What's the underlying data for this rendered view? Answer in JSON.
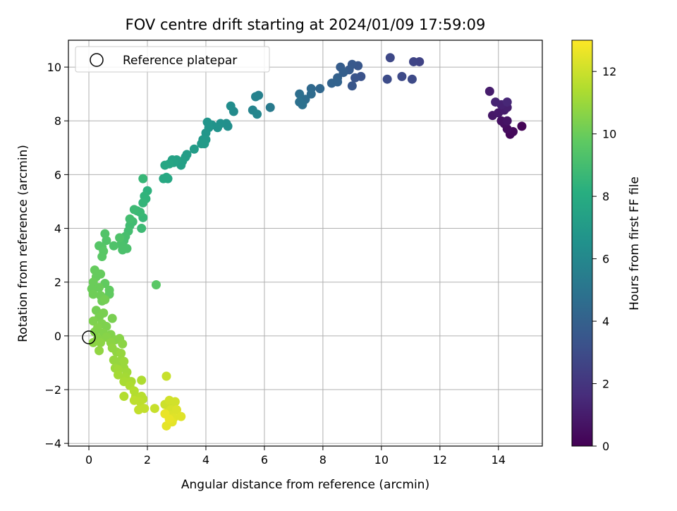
{
  "chart_data": {
    "type": "scatter",
    "title": "FOV centre drift starting at 2024/01/09 17:59:09",
    "xlabel": "Angular distance from reference (arcmin)",
    "ylabel": "Rotation from reference (arcmin)",
    "xlim": [
      -0.7,
      15.5
    ],
    "ylim": [
      -4.1,
      11.0
    ],
    "xticks": [
      0,
      2,
      4,
      6,
      8,
      10,
      12,
      14
    ],
    "yticks": [
      -4,
      -2,
      0,
      2,
      4,
      6,
      8,
      10
    ],
    "xtick_labels": [
      "0",
      "2",
      "4",
      "6",
      "8",
      "10",
      "12",
      "14"
    ],
    "ytick_labels": [
      "−4",
      "−2",
      "0",
      "2",
      "4",
      "6",
      "8",
      "10"
    ],
    "grid": true,
    "legend": {
      "position": "top-left",
      "label": "Reference platepar"
    },
    "reference_point": {
      "x": 0,
      "y": 0
    },
    "colorbar": {
      "label": "Hours from first FF file",
      "range": [
        0,
        13
      ],
      "ticks": [
        0,
        2,
        4,
        6,
        8,
        10,
        12
      ],
      "tick_labels": [
        "0",
        "2",
        "4",
        "6",
        "8",
        "10",
        "12"
      ],
      "colormap": "viridis"
    },
    "points": [
      {
        "x": 14.8,
        "y": 7.8,
        "c": 0.1
      },
      {
        "x": 14.4,
        "y": 7.5,
        "c": 0.2
      },
      {
        "x": 14.5,
        "y": 7.6,
        "c": 0.3
      },
      {
        "x": 14.3,
        "y": 7.7,
        "c": 0.4
      },
      {
        "x": 14.2,
        "y": 7.9,
        "c": 0.5
      },
      {
        "x": 14.1,
        "y": 8.0,
        "c": 0.6
      },
      {
        "x": 14.3,
        "y": 8.0,
        "c": 0.7
      },
      {
        "x": 13.8,
        "y": 8.2,
        "c": 0.8
      },
      {
        "x": 14.0,
        "y": 8.3,
        "c": 0.9
      },
      {
        "x": 14.2,
        "y": 8.4,
        "c": 1.0
      },
      {
        "x": 14.3,
        "y": 8.5,
        "c": 1.1
      },
      {
        "x": 14.1,
        "y": 8.6,
        "c": 1.2
      },
      {
        "x": 13.9,
        "y": 8.7,
        "c": 1.3
      },
      {
        "x": 14.3,
        "y": 8.7,
        "c": 1.4
      },
      {
        "x": 13.7,
        "y": 9.1,
        "c": 1.0
      },
      {
        "x": 11.3,
        "y": 10.2,
        "c": 2.6
      },
      {
        "x": 11.1,
        "y": 10.2,
        "c": 2.7
      },
      {
        "x": 10.3,
        "y": 10.35,
        "c": 2.8
      },
      {
        "x": 10.7,
        "y": 9.65,
        "c": 2.9
      },
      {
        "x": 11.05,
        "y": 9.55,
        "c": 2.9
      },
      {
        "x": 10.2,
        "y": 9.55,
        "c": 3.0
      },
      {
        "x": 9.3,
        "y": 9.65,
        "c": 3.3
      },
      {
        "x": 9.1,
        "y": 9.6,
        "c": 3.4
      },
      {
        "x": 9.0,
        "y": 9.3,
        "c": 3.5
      },
      {
        "x": 9.2,
        "y": 10.05,
        "c": 3.5
      },
      {
        "x": 9.0,
        "y": 10.1,
        "c": 3.6
      },
      {
        "x": 8.9,
        "y": 9.9,
        "c": 3.7
      },
      {
        "x": 8.6,
        "y": 10.0,
        "c": 3.8
      },
      {
        "x": 8.7,
        "y": 9.8,
        "c": 3.9
      },
      {
        "x": 8.5,
        "y": 9.6,
        "c": 4.0
      },
      {
        "x": 8.3,
        "y": 9.4,
        "c": 4.1
      },
      {
        "x": 8.5,
        "y": 9.45,
        "c": 4.1
      },
      {
        "x": 7.9,
        "y": 9.2,
        "c": 4.3
      },
      {
        "x": 7.6,
        "y": 9.2,
        "c": 4.4
      },
      {
        "x": 7.6,
        "y": 9.0,
        "c": 4.5
      },
      {
        "x": 7.4,
        "y": 8.8,
        "c": 4.6
      },
      {
        "x": 7.2,
        "y": 9.0,
        "c": 4.7
      },
      {
        "x": 7.2,
        "y": 8.7,
        "c": 4.8
      },
      {
        "x": 7.3,
        "y": 8.6,
        "c": 4.8
      },
      {
        "x": 6.2,
        "y": 8.5,
        "c": 5.3
      },
      {
        "x": 5.8,
        "y": 8.95,
        "c": 5.6
      },
      {
        "x": 5.7,
        "y": 8.9,
        "c": 5.7
      },
      {
        "x": 5.6,
        "y": 8.4,
        "c": 5.8
      },
      {
        "x": 5.75,
        "y": 8.25,
        "c": 5.9
      },
      {
        "x": 4.95,
        "y": 8.35,
        "c": 6.2
      },
      {
        "x": 4.85,
        "y": 8.55,
        "c": 6.3
      },
      {
        "x": 4.75,
        "y": 7.8,
        "c": 6.4
      },
      {
        "x": 4.7,
        "y": 7.9,
        "c": 6.4
      },
      {
        "x": 4.5,
        "y": 7.9,
        "c": 6.5
      },
      {
        "x": 4.4,
        "y": 7.75,
        "c": 6.6
      },
      {
        "x": 4.2,
        "y": 7.85,
        "c": 6.6
      },
      {
        "x": 4.05,
        "y": 7.95,
        "c": 6.7
      },
      {
        "x": 4.1,
        "y": 7.75,
        "c": 6.7
      },
      {
        "x": 4.0,
        "y": 7.55,
        "c": 6.8
      },
      {
        "x": 3.9,
        "y": 7.3,
        "c": 6.9
      },
      {
        "x": 4.0,
        "y": 7.3,
        "c": 6.9
      },
      {
        "x": 3.85,
        "y": 7.15,
        "c": 7.0
      },
      {
        "x": 3.95,
        "y": 7.15,
        "c": 7.0
      },
      {
        "x": 3.6,
        "y": 6.95,
        "c": 7.1
      },
      {
        "x": 3.35,
        "y": 6.75,
        "c": 7.2
      },
      {
        "x": 3.3,
        "y": 6.65,
        "c": 7.2
      },
      {
        "x": 3.2,
        "y": 6.5,
        "c": 7.3
      },
      {
        "x": 3.15,
        "y": 6.35,
        "c": 7.3
      },
      {
        "x": 3.0,
        "y": 6.55,
        "c": 7.4
      },
      {
        "x": 2.85,
        "y": 6.55,
        "c": 7.4
      },
      {
        "x": 2.9,
        "y": 6.45,
        "c": 7.5
      },
      {
        "x": 2.75,
        "y": 6.4,
        "c": 7.6
      },
      {
        "x": 2.6,
        "y": 6.35,
        "c": 7.7
      },
      {
        "x": 2.7,
        "y": 5.85,
        "c": 7.7
      },
      {
        "x": 2.55,
        "y": 5.85,
        "c": 7.8
      },
      {
        "x": 2.65,
        "y": 5.9,
        "c": 7.8
      },
      {
        "x": 2.0,
        "y": 5.4,
        "c": 8.3
      },
      {
        "x": 1.9,
        "y": 5.2,
        "c": 8.4
      },
      {
        "x": 1.95,
        "y": 5.1,
        "c": 8.4
      },
      {
        "x": 1.85,
        "y": 4.95,
        "c": 8.5
      },
      {
        "x": 1.85,
        "y": 5.85,
        "c": 8.6
      },
      {
        "x": 1.85,
        "y": 4.4,
        "c": 8.6
      },
      {
        "x": 1.75,
        "y": 4.6,
        "c": 8.7
      },
      {
        "x": 1.65,
        "y": 4.65,
        "c": 8.7
      },
      {
        "x": 1.8,
        "y": 4.0,
        "c": 8.8
      },
      {
        "x": 1.55,
        "y": 4.7,
        "c": 8.8
      },
      {
        "x": 1.5,
        "y": 4.25,
        "c": 8.9
      },
      {
        "x": 1.4,
        "y": 4.1,
        "c": 8.9
      },
      {
        "x": 1.35,
        "y": 3.9,
        "c": 9.0
      },
      {
        "x": 1.4,
        "y": 4.35,
        "c": 9.0
      },
      {
        "x": 1.25,
        "y": 3.7,
        "c": 9.1
      },
      {
        "x": 1.2,
        "y": 3.55,
        "c": 9.1
      },
      {
        "x": 1.1,
        "y": 3.4,
        "c": 9.2
      },
      {
        "x": 1.15,
        "y": 3.2,
        "c": 9.2
      },
      {
        "x": 1.3,
        "y": 3.25,
        "c": 9.2
      },
      {
        "x": 1.05,
        "y": 3.65,
        "c": 9.3
      },
      {
        "x": 0.85,
        "y": 3.35,
        "c": 9.3
      },
      {
        "x": 0.55,
        "y": 3.8,
        "c": 9.4
      },
      {
        "x": 0.6,
        "y": 3.55,
        "c": 9.4
      },
      {
        "x": 0.45,
        "y": 3.3,
        "c": 9.5
      },
      {
        "x": 0.35,
        "y": 3.35,
        "c": 9.5
      },
      {
        "x": 0.5,
        "y": 3.15,
        "c": 9.6
      },
      {
        "x": 0.45,
        "y": 2.95,
        "c": 9.6
      },
      {
        "x": 2.3,
        "y": 1.9,
        "c": 9.6
      },
      {
        "x": 0.7,
        "y": 1.7,
        "c": 9.8
      },
      {
        "x": 0.7,
        "y": 1.55,
        "c": 9.8
      },
      {
        "x": 0.55,
        "y": 1.95,
        "c": 9.8
      },
      {
        "x": 0.4,
        "y": 2.3,
        "c": 9.9
      },
      {
        "x": 0.2,
        "y": 2.45,
        "c": 9.9
      },
      {
        "x": 0.25,
        "y": 2.2,
        "c": 9.9
      },
      {
        "x": 0.15,
        "y": 2.0,
        "c": 10.0
      },
      {
        "x": 0.35,
        "y": 1.8,
        "c": 10.0
      },
      {
        "x": 0.1,
        "y": 1.75,
        "c": 10.0
      },
      {
        "x": 0.15,
        "y": 1.55,
        "c": 10.1
      },
      {
        "x": 0.4,
        "y": 1.5,
        "c": 10.1
      },
      {
        "x": 0.45,
        "y": 1.3,
        "c": 10.1
      },
      {
        "x": 0.55,
        "y": 1.35,
        "c": 10.2
      },
      {
        "x": 0.25,
        "y": 0.95,
        "c": 10.2
      },
      {
        "x": 0.5,
        "y": 0.85,
        "c": 10.3
      },
      {
        "x": 0.35,
        "y": 0.7,
        "c": 10.3
      },
      {
        "x": 0.8,
        "y": 0.65,
        "c": 10.3
      },
      {
        "x": 0.15,
        "y": 0.55,
        "c": 10.4
      },
      {
        "x": 0.45,
        "y": 0.45,
        "c": 10.4
      },
      {
        "x": 0.6,
        "y": 0.35,
        "c": 10.4
      },
      {
        "x": 0.3,
        "y": 0.3,
        "c": 10.5
      },
      {
        "x": 0.2,
        "y": 0.15,
        "c": 10.5
      },
      {
        "x": 0.5,
        "y": 0.1,
        "c": 10.5
      },
      {
        "x": 0.75,
        "y": 0.05,
        "c": 10.5
      },
      {
        "x": 0.6,
        "y": -0.05,
        "c": 10.6
      },
      {
        "x": 0.3,
        "y": -0.1,
        "c": 10.6
      },
      {
        "x": 0.9,
        "y": -0.15,
        "c": 10.6
      },
      {
        "x": 1.05,
        "y": -0.1,
        "c": 10.6
      },
      {
        "x": 0.4,
        "y": -0.25,
        "c": 10.7
      },
      {
        "x": 0.75,
        "y": -0.25,
        "c": 10.7
      },
      {
        "x": 1.15,
        "y": -0.3,
        "c": 10.7
      },
      {
        "x": 0.15,
        "y": -0.25,
        "c": 10.7
      },
      {
        "x": 0.8,
        "y": -0.45,
        "c": 10.8
      },
      {
        "x": 0.35,
        "y": -0.55,
        "c": 10.8
      },
      {
        "x": 0.95,
        "y": -0.6,
        "c": 10.8
      },
      {
        "x": 1.1,
        "y": -0.65,
        "c": 10.9
      },
      {
        "x": 0.85,
        "y": -0.9,
        "c": 10.9
      },
      {
        "x": 1.05,
        "y": -0.95,
        "c": 10.9
      },
      {
        "x": 1.2,
        "y": -0.95,
        "c": 11.0
      },
      {
        "x": 0.9,
        "y": -1.2,
        "c": 11.0
      },
      {
        "x": 1.2,
        "y": -1.2,
        "c": 11.0
      },
      {
        "x": 1.0,
        "y": -1.25,
        "c": 11.1
      },
      {
        "x": 1.3,
        "y": -1.35,
        "c": 11.1
      },
      {
        "x": 1.0,
        "y": -1.45,
        "c": 11.2
      },
      {
        "x": 1.25,
        "y": -1.55,
        "c": 11.2
      },
      {
        "x": 1.2,
        "y": -1.7,
        "c": 11.3
      },
      {
        "x": 1.45,
        "y": -1.7,
        "c": 11.3
      },
      {
        "x": 1.4,
        "y": -1.85,
        "c": 11.4
      },
      {
        "x": 1.8,
        "y": -1.65,
        "c": 11.4
      },
      {
        "x": 1.55,
        "y": -2.05,
        "c": 11.5
      },
      {
        "x": 1.6,
        "y": -2.25,
        "c": 11.5
      },
      {
        "x": 1.2,
        "y": -2.25,
        "c": 11.5
      },
      {
        "x": 1.8,
        "y": -2.25,
        "c": 11.6
      },
      {
        "x": 1.85,
        "y": -2.35,
        "c": 11.6
      },
      {
        "x": 1.55,
        "y": -2.4,
        "c": 11.7
      },
      {
        "x": 1.75,
        "y": -2.45,
        "c": 11.7
      },
      {
        "x": 1.7,
        "y": -2.75,
        "c": 11.8
      },
      {
        "x": 1.9,
        "y": -2.7,
        "c": 11.8
      },
      {
        "x": 2.25,
        "y": -2.7,
        "c": 11.9
      },
      {
        "x": 2.65,
        "y": -1.5,
        "c": 11.9
      },
      {
        "x": 2.6,
        "y": -2.55,
        "c": 12.0
      },
      {
        "x": 2.85,
        "y": -2.5,
        "c": 12.0
      },
      {
        "x": 2.75,
        "y": -2.4,
        "c": 12.1
      },
      {
        "x": 2.95,
        "y": -2.45,
        "c": 12.1
      },
      {
        "x": 2.7,
        "y": -2.85,
        "c": 12.2
      },
      {
        "x": 2.8,
        "y": -2.75,
        "c": 12.2
      },
      {
        "x": 3.0,
        "y": -2.75,
        "c": 12.3
      },
      {
        "x": 2.75,
        "y": -2.95,
        "c": 12.3
      },
      {
        "x": 2.9,
        "y": -3.05,
        "c": 12.4
      },
      {
        "x": 3.15,
        "y": -3.0,
        "c": 12.4
      },
      {
        "x": 2.85,
        "y": -3.2,
        "c": 12.5
      },
      {
        "x": 2.65,
        "y": -3.35,
        "c": 12.5
      },
      {
        "x": 2.75,
        "y": -3.1,
        "c": 12.6
      },
      {
        "x": 2.6,
        "y": -2.9,
        "c": 12.6
      }
    ]
  }
}
